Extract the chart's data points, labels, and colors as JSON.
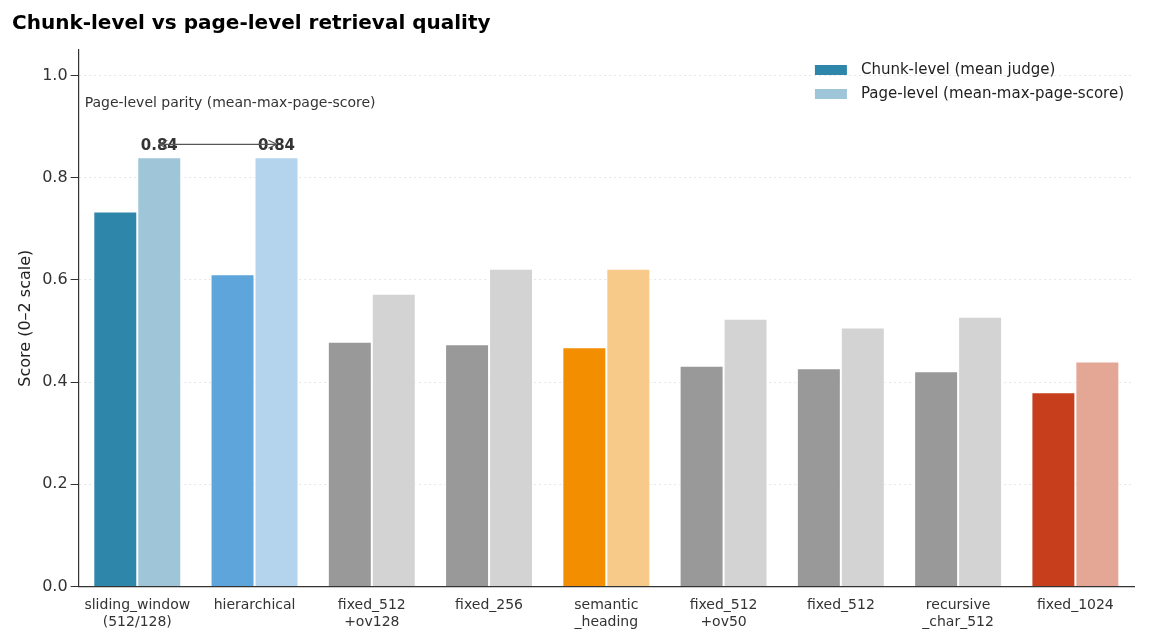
{
  "chart_data": {
    "type": "bar",
    "title": "Chunk-level vs page-level retrieval quality",
    "ylabel": "Score (0–2 scale)",
    "categories": [
      "sliding_window\n(512/128)",
      "hierarchical",
      "fixed_512\n+ov128",
      "fixed_256",
      "semantic\n_heading",
      "fixed_512\n+ov50",
      "fixed_512",
      "recursive\n_char_512",
      "fixed_1024"
    ],
    "series": [
      {
        "name": "Chunk-level (mean judge)",
        "color": "#2e86ab",
        "colors": [
          "#2e86ab",
          "#5da5da",
          "#999999",
          "#999999",
          "#f28e00",
          "#999999",
          "#999999",
          "#999999",
          "#c73e1d"
        ],
        "values": [
          0.734,
          0.611,
          0.479,
          0.474,
          0.468,
          0.432,
          0.427,
          0.421,
          0.38
        ]
      },
      {
        "name": "Page-level (mean-max-page-score)",
        "color": "#9fc5d8",
        "colors": [
          "#9fc5d8",
          "#b3d4ec",
          "#d3d3d3",
          "#d3d3d3",
          "#f7ca8a",
          "#d3d3d3",
          "#d3d3d3",
          "#d3d3d3",
          "#e4a795"
        ],
        "values": [
          0.84,
          0.84,
          0.573,
          0.622,
          0.622,
          0.524,
          0.507,
          0.528,
          0.44
        ],
        "value_labels": [
          "0.84",
          "0.84",
          null,
          null,
          null,
          null,
          null,
          null,
          null
        ]
      }
    ],
    "ylim": [
      0,
      1.05
    ],
    "yticks": [
      {
        "value": 0,
        "label": "0.0"
      },
      0.2,
      0.4,
      0.6,
      0.8,
      {
        "value": 1,
        "label": "1.0"
      }
    ],
    "grid": "y",
    "legend": "top right",
    "annotations": [
      "Page-level parity (mean-max-page-score)"
    ]
  }
}
